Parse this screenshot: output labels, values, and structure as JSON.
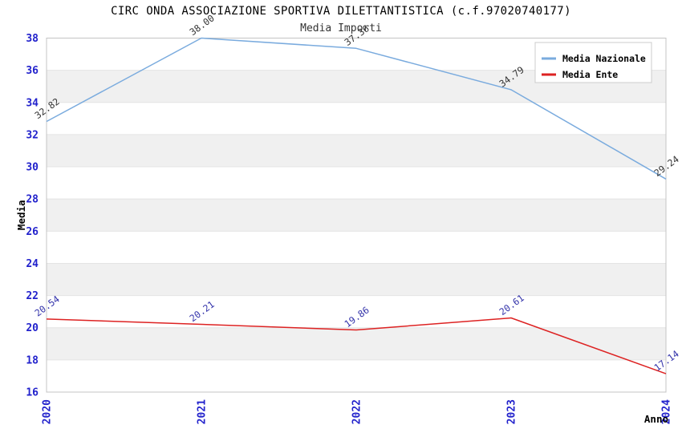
{
  "chart_data": {
    "type": "line",
    "title": "CIRC ONDA ASSOCIAZIONE SPORTIVA DILETTANTISTICA (c.f.97020740177)",
    "subtitle": "Media Importi",
    "x": [
      "2020",
      "2021",
      "2022",
      "2023",
      "2024"
    ],
    "xlabel": "Anno",
    "ylabel": "Media",
    "ylim": [
      16,
      38
    ],
    "ytick_step": 2,
    "label_decimals": 2,
    "grid": "alternating-horizontal-bands",
    "legend_position": "top-right-inside",
    "series": [
      {
        "name": "Media Nazionale",
        "color": "#7aabde",
        "label_color": "#333333",
        "values": [
          32.82,
          38.0,
          37.36,
          34.79,
          29.24
        ]
      },
      {
        "name": "Media Ente",
        "color": "#dd2222",
        "label_color": "#3333aa",
        "values": [
          20.54,
          20.21,
          19.86,
          20.61,
          17.14
        ]
      }
    ],
    "colors": {
      "tick_label": "#2222cc",
      "band_even": "#ffffff",
      "band_odd": "#f0f0f0",
      "grid_line": "#e4e4e4",
      "plot_border": "#c4c4c4",
      "legend_border": "#cccccc",
      "legend_bg": "#ffffff",
      "legend_text": "#000000",
      "axis_label": "#000000"
    }
  }
}
